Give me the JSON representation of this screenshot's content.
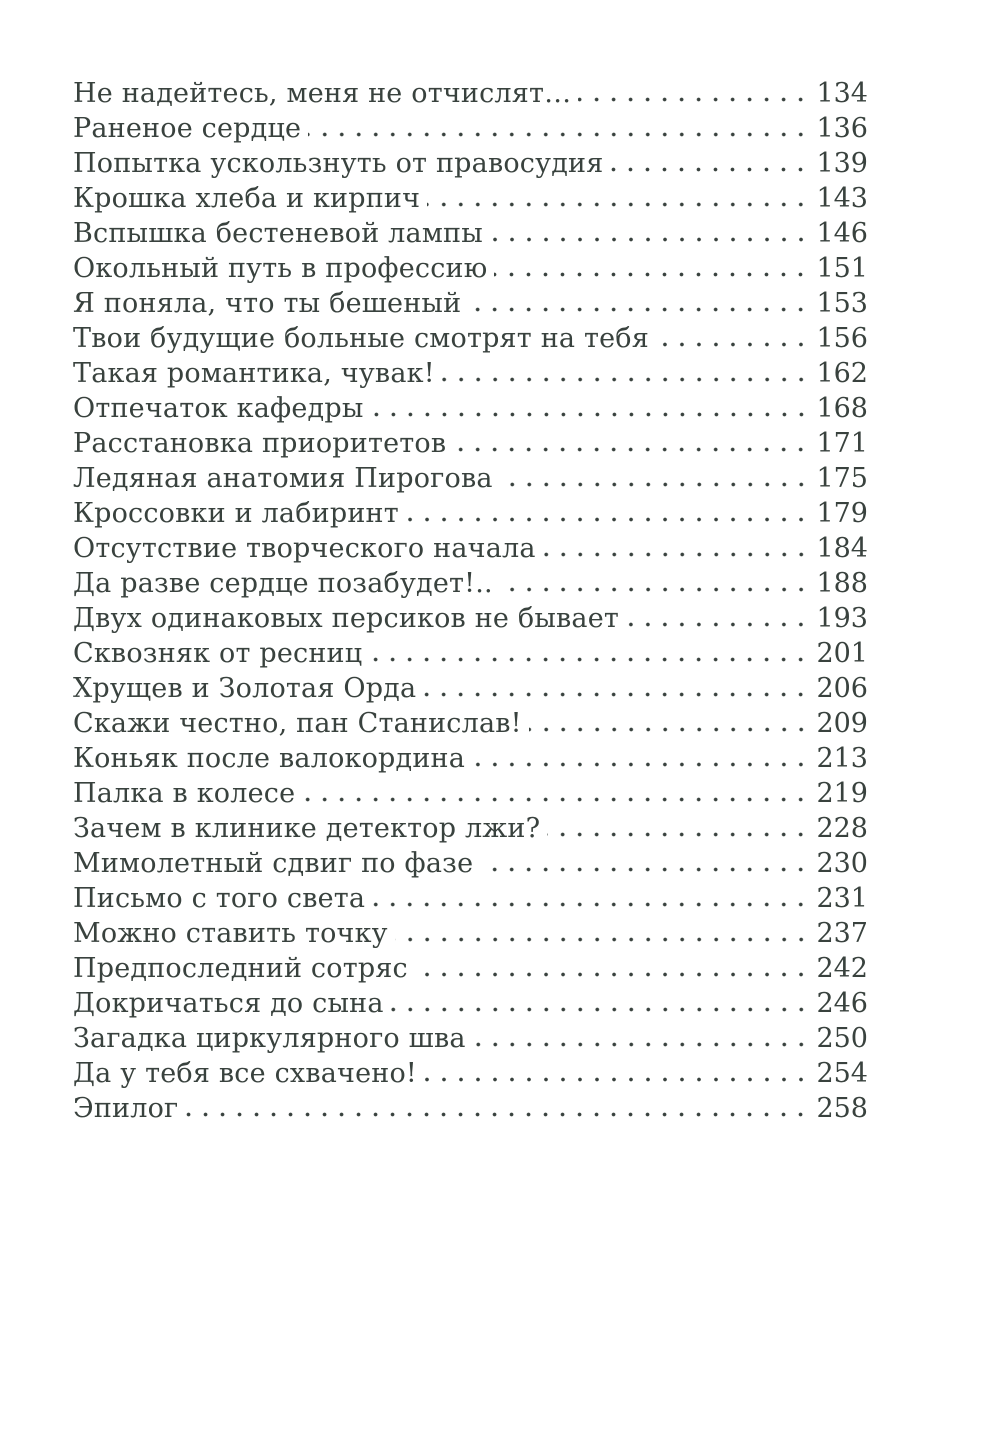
{
  "page": {
    "kind": "book-table-of-contents",
    "language": "ru",
    "colors": {
      "ink": "#39423e",
      "paper": "#ffffff"
    }
  },
  "toc": {
    "entries": [
      {
        "title": "Не надейтесь, меня не отчислят…",
        "page": "134"
      },
      {
        "title": "Раненое сердце",
        "page": "136"
      },
      {
        "title": "Попытка ускользнуть от правосудия",
        "page": "139"
      },
      {
        "title": "Крошка хлеба и кирпич",
        "page": "143"
      },
      {
        "title": "Вспышка бестеневой лампы",
        "page": "146"
      },
      {
        "title": "Окольный путь в профессию",
        "page": "151"
      },
      {
        "title": "Я поняла, что ты бешеный",
        "page": "153"
      },
      {
        "title": "Твои будущие больные смотрят на тебя",
        "page": "156"
      },
      {
        "title": "Такая романтика, чувак!",
        "page": "162"
      },
      {
        "title": "Отпечаток кафедры",
        "page": "168"
      },
      {
        "title": "Расстановка приоритетов",
        "page": "171"
      },
      {
        "title": "Ледяная анатомия Пирогова",
        "page": "175"
      },
      {
        "title": "Кроссовки и лабиринт",
        "page": "179"
      },
      {
        "title": "Отсутствие творческого начала",
        "page": "184"
      },
      {
        "title": "Да разве сердце позабудет!..",
        "page": "188"
      },
      {
        "title": "Двух одинаковых персиков не бывает",
        "page": "193"
      },
      {
        "title": "Сквозняк от ресниц",
        "page": "201"
      },
      {
        "title": "Хрущев и Золотая Орда",
        "page": "206"
      },
      {
        "title": "Скажи честно, пан Станислав!",
        "page": "209"
      },
      {
        "title": "Коньяк после валокордина",
        "page": "213"
      },
      {
        "title": "Палка в колесе",
        "page": "219"
      },
      {
        "title": "Зачем в клинике детектор лжи?",
        "page": "228"
      },
      {
        "title": "Мимолетный сдвиг по фазе",
        "page": "230"
      },
      {
        "title": "Письмо с того света",
        "page": "231"
      },
      {
        "title": "Можно ставить точку",
        "page": "237"
      },
      {
        "title": "Предпоследний сотряс",
        "page": "242"
      },
      {
        "title": "Докричаться до сына",
        "page": "246"
      },
      {
        "title": "Загадка циркулярного шва",
        "page": "250"
      },
      {
        "title": "Да у тебя все схвачено!",
        "page": "254"
      },
      {
        "title": "Эпилог",
        "page": "258"
      }
    ]
  }
}
